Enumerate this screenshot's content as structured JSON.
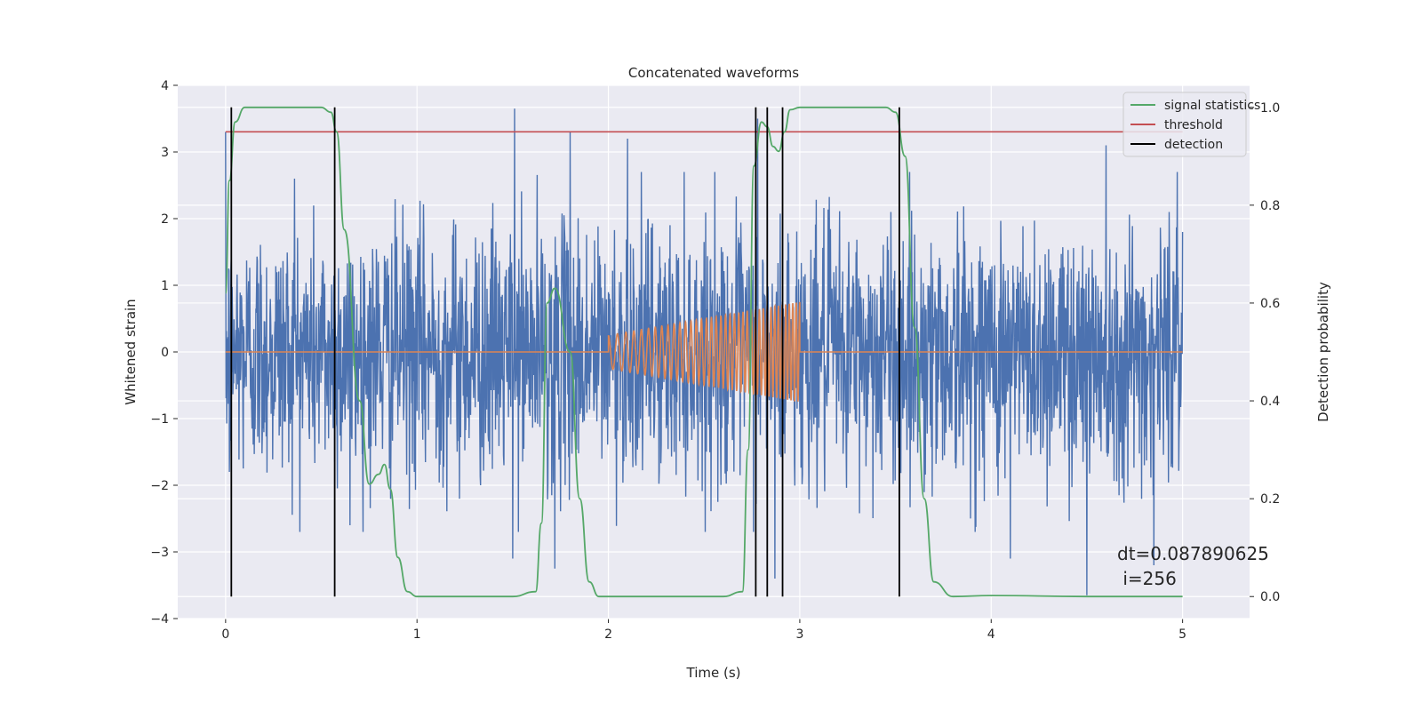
{
  "chart_data": {
    "type": "line",
    "title": "Concatenated waveforms",
    "xlabel": "Time (s)",
    "ylabel_left": "Whitened strain",
    "ylabel_right": "Detection probability",
    "xlim": [
      -0.25,
      5.35
    ],
    "ylim_left": [
      -4,
      4
    ],
    "ylim_right": [
      -0.045,
      1.045
    ],
    "x_ticks": [
      0,
      1,
      2,
      3,
      4,
      5
    ],
    "y_left_ticks": [
      -4,
      -3,
      -2,
      -1,
      0,
      1,
      2,
      3,
      4
    ],
    "y_right_ticks": [
      0.0,
      0.2,
      0.4,
      0.6,
      0.8,
      1.0
    ],
    "y_right_tick_labels": [
      "0.0",
      "0.2",
      "0.4",
      "0.6",
      "0.8",
      "1.0"
    ],
    "grid": true,
    "legend_position": "top-right",
    "legend": [
      "signal statistics",
      "threshold",
      "detection"
    ],
    "colors": {
      "strain": "#4c72b0",
      "template": "#dd8452",
      "signal_statistics": "#55a868",
      "threshold": "#c44e52",
      "detection": "#000000",
      "background": "#eaeaf2"
    },
    "annotation": {
      "line1": "dt=0.087890625",
      "line2": " i=256"
    },
    "strain_series": {
      "x_start": 0.0,
      "x_end": 5.0,
      "typical_std": 0.95,
      "visible_peaks": [
        {
          "x": 0.0,
          "y": 3.3
        },
        {
          "x": 0.02,
          "y": -1.8
        },
        {
          "x": 0.36,
          "y": 2.6
        },
        {
          "x": 0.65,
          "y": -2.6
        },
        {
          "x": 1.51,
          "y": 3.65
        },
        {
          "x": 1.5,
          "y": -3.1
        },
        {
          "x": 1.72,
          "y": -3.25
        },
        {
          "x": 1.8,
          "y": 3.3
        },
        {
          "x": 2.1,
          "y": 3.2
        },
        {
          "x": 2.78,
          "y": 3.5
        },
        {
          "x": 2.83,
          "y": -3.1
        },
        {
          "x": 2.87,
          "y": -3.4
        },
        {
          "x": 3.52,
          "y": -3.45
        },
        {
          "x": 4.1,
          "y": -3.1
        },
        {
          "x": 4.5,
          "y": -3.65
        },
        {
          "x": 4.6,
          "y": 3.1
        },
        {
          "x": 4.85,
          "y": -3.2
        },
        {
          "x": 4.93,
          "y": 2.1
        },
        {
          "x": 5.0,
          "y": 1.8
        }
      ]
    },
    "template_series": {
      "x_start": 2.0,
      "x_end": 3.0,
      "amp_start": 0.25,
      "amp_end": 0.75,
      "freq_start": 20,
      "freq_end": 56,
      "base_value": 0.0
    },
    "signal_statistics": {
      "x": [
        0.0,
        0.02,
        0.05,
        0.1,
        0.2,
        0.5,
        0.55,
        0.58,
        0.62,
        0.7,
        0.75,
        0.8,
        0.83,
        0.86,
        0.9,
        0.95,
        1.0,
        1.2,
        1.5,
        1.62,
        1.65,
        1.68,
        1.72,
        1.8,
        1.85,
        1.9,
        1.95,
        2.0,
        2.3,
        2.6,
        2.7,
        2.73,
        2.76,
        2.8,
        2.83,
        2.86,
        2.89,
        2.92,
        2.95,
        3.0,
        3.2,
        3.45,
        3.5,
        3.55,
        3.6,
        3.65,
        3.7,
        3.8,
        4.0,
        4.5,
        5.0
      ],
      "y": [
        0.62,
        0.85,
        0.97,
        1.0,
        1.0,
        1.0,
        0.99,
        0.95,
        0.75,
        0.4,
        0.23,
        0.25,
        0.27,
        0.22,
        0.08,
        0.01,
        0.0,
        0.0,
        0.0,
        0.01,
        0.15,
        0.6,
        0.63,
        0.5,
        0.2,
        0.03,
        0.0,
        0.0,
        0.0,
        0.0,
        0.01,
        0.3,
        0.88,
        0.97,
        0.96,
        0.92,
        0.91,
        0.95,
        0.995,
        1.0,
        1.0,
        1.0,
        0.99,
        0.9,
        0.55,
        0.2,
        0.03,
        0.0,
        0.002,
        0.0,
        0.0
      ]
    },
    "threshold": {
      "x_start": 0.0,
      "x_end": 5.0,
      "y": 0.95
    },
    "detections": [
      0.03,
      0.57,
      2.77,
      2.83,
      2.91,
      3.52
    ]
  }
}
